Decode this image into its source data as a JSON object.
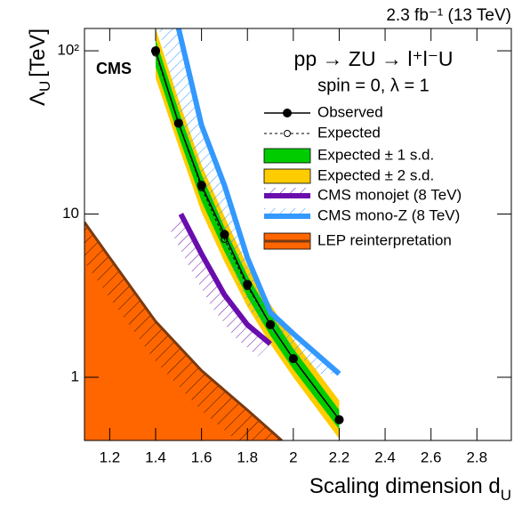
{
  "chart_data": {
    "type": "line",
    "lumi": "2.3 fb⁻¹ (13 TeV)",
    "experiment": "CMS",
    "process": "pp → ZU → l⁺l⁻U",
    "model": "spin = 0, λ = 1",
    "x_label": "Scaling dimension d",
    "x_label_sub": "U",
    "y_label": "Λ",
    "y_label_sub": "U",
    "y_label_unit": "[TeV]",
    "xlim": [
      1.09,
      2.95
    ],
    "xticks": [
      1.2,
      1.4,
      1.6,
      1.8,
      2,
      2.2,
      2.4,
      2.6,
      2.8
    ],
    "ylim": [
      0.41,
      137
    ],
    "yticks": [
      1,
      10,
      {
        "value": 100,
        "label": "10²"
      }
    ],
    "log_y": true,
    "series": [
      {
        "name": "Observed",
        "kind": "line",
        "style": "solid",
        "marker": "filled",
        "color": "#000000",
        "x": [
          1.4,
          1.5,
          1.6,
          1.7,
          1.8,
          1.9,
          2.0,
          2.2
        ],
        "values": [
          100,
          36,
          15,
          7.5,
          3.7,
          2.1,
          1.3,
          0.55
        ]
      },
      {
        "name": "Expected",
        "kind": "line",
        "style": "dashed",
        "marker": "open",
        "color": "#000000",
        "x": [
          1.4,
          1.5,
          1.6,
          1.7,
          1.8,
          1.9,
          2.0,
          2.2
        ],
        "values": [
          97,
          36,
          14.5,
          7,
          3.6,
          2.1,
          1.3,
          0.55
        ]
      },
      {
        "name": "Expected ± 1 s.d.",
        "kind": "band",
        "color": "#00cc00",
        "x": [
          1.4,
          1.5,
          1.6,
          1.7,
          1.8,
          1.9,
          2.0,
          2.2
        ],
        "low": [
          80,
          30,
          12,
          5.9,
          3.1,
          1.8,
          1.12,
          0.48
        ],
        "high": [
          118,
          43,
          17.5,
          8.3,
          4.2,
          2.45,
          1.5,
          0.63
        ]
      },
      {
        "name": "Expected ± 2 s.d.",
        "kind": "band",
        "color": "#ffcc00",
        "x": [
          1.4,
          1.5,
          1.6,
          1.7,
          1.8,
          1.9,
          2.0,
          2.2
        ],
        "low": [
          68,
          26,
          10.3,
          5.1,
          2.7,
          1.6,
          1.0,
          0.42
        ],
        "high": [
          137,
          50,
          20,
          9.7,
          4.8,
          2.8,
          1.7,
          0.72
        ]
      },
      {
        "name": "CMS monojet (8 TeV)",
        "kind": "limit",
        "color": "#6a0dad",
        "x": [
          1.51,
          1.6,
          1.7,
          1.8,
          1.9
        ],
        "values": [
          10,
          5.7,
          3.2,
          2.1,
          1.6
        ]
      },
      {
        "name": "CMS mono-Z (8 TeV)",
        "kind": "limit",
        "color": "#3399ff",
        "x": [
          1.5,
          1.6,
          1.7,
          1.8,
          1.9,
          2.0,
          2.2
        ],
        "values": [
          137,
          35,
          15,
          5.4,
          2.5,
          1.85,
          1.05
        ]
      },
      {
        "name": "LEP reinterpretation",
        "kind": "area",
        "color": "#ff6600",
        "x": [
          1.09,
          1.2,
          1.4,
          1.6,
          1.8,
          1.95
        ],
        "values": [
          8.9,
          5.4,
          2.2,
          1.1,
          0.63,
          0.41
        ]
      }
    ]
  }
}
